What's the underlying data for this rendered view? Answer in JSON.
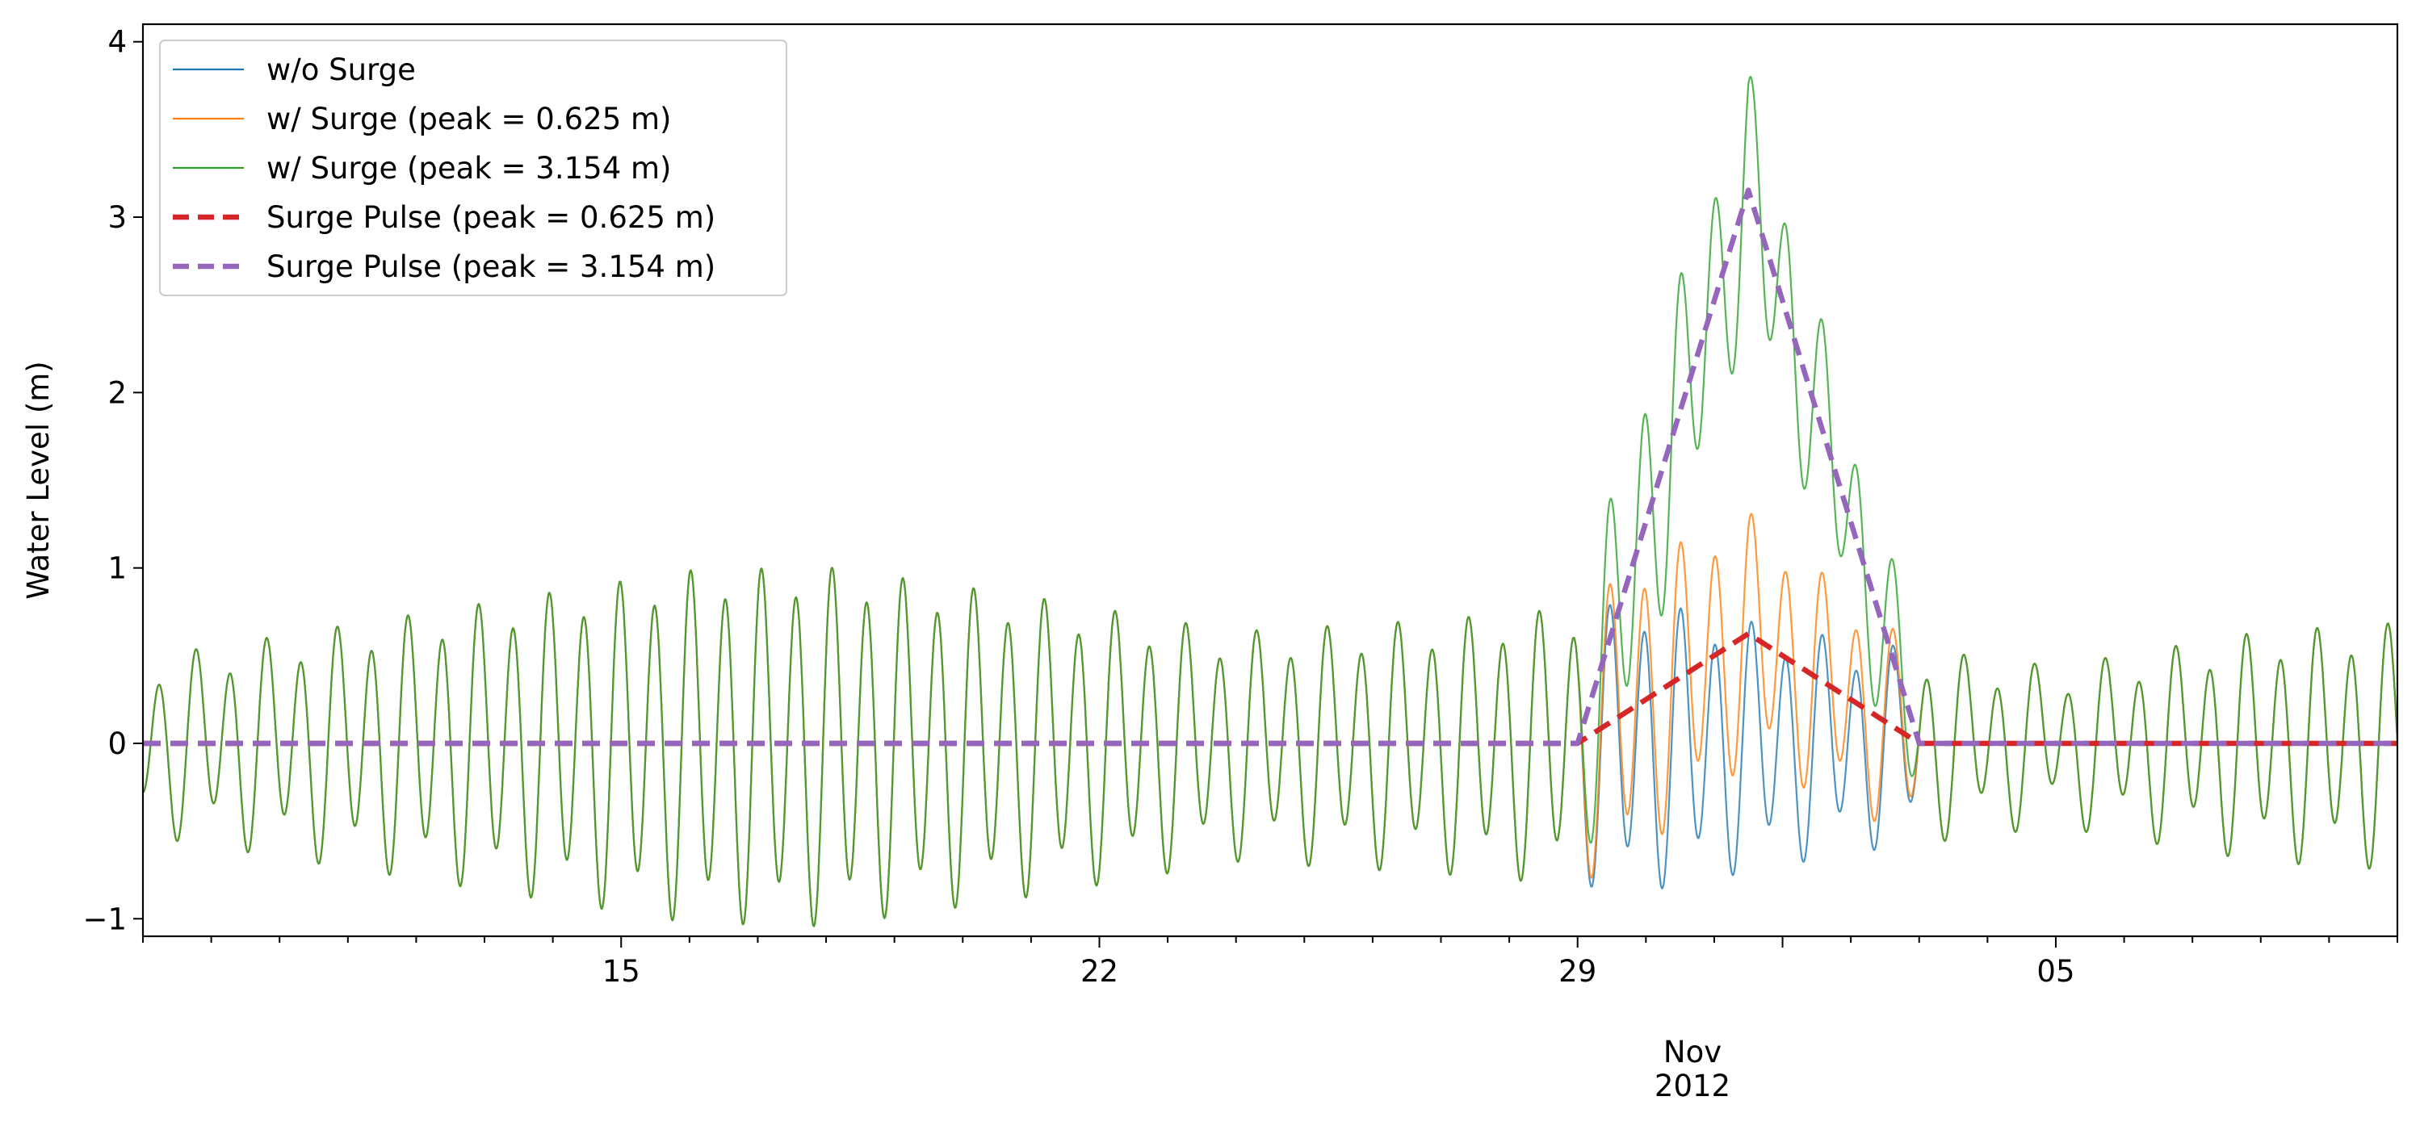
{
  "chart_data": {
    "type": "line",
    "title": "",
    "xlabel": "",
    "ylabel": "Water Level (m)",
    "xlim": [
      "2012-10-08T00:00",
      "2012-11-10T00:00"
    ],
    "ylim": [
      -1.1,
      4.1
    ],
    "grid": false,
    "legend_position": "top-left",
    "x_major_ticks": [
      {
        "date": "2012-10-15",
        "label": "15"
      },
      {
        "date": "2012-10-22",
        "label": "22"
      },
      {
        "date": "2012-10-29",
        "label": "29"
      },
      {
        "date": "2012-11-05",
        "label": "05"
      }
    ],
    "x_secondary_label": {
      "date": "2012-11-01",
      "line1": "Nov",
      "line2": "2012"
    },
    "y_ticks": [
      {
        "value": -1,
        "label": "−1"
      },
      {
        "value": 0,
        "label": "0"
      },
      {
        "value": 1,
        "label": "1"
      },
      {
        "value": 2,
        "label": "2"
      },
      {
        "value": 3,
        "label": "3"
      },
      {
        "value": 4,
        "label": "4"
      }
    ],
    "series": [
      {
        "name": "w/o Surge",
        "color": "#1f77b4",
        "style": "solid",
        "tide": {
          "amplitude_envelope": [
            [
              "2012-10-08",
              0.4
            ],
            [
              "2012-10-12",
              0.65
            ],
            [
              "2012-10-16",
              0.9
            ],
            [
              "2012-10-18",
              0.92
            ],
            [
              "2012-10-21",
              0.75
            ],
            [
              "2012-10-24",
              0.55
            ],
            [
              "2012-10-27",
              0.62
            ],
            [
              "2012-10-30",
              0.72
            ],
            [
              "2012-11-02",
              0.5
            ],
            [
              "2012-11-05",
              0.35
            ],
            [
              "2012-11-08",
              0.55
            ],
            [
              "2012-11-10",
              0.6
            ]
          ],
          "period_hours": 12.42,
          "first_high_water": "2012-10-08T06:00",
          "secondary_amplitude": 0.15
        },
        "added_surge": "none"
      },
      {
        "name": "w/ Surge (peak = 0.625 m)",
        "color": "#ff7f0e",
        "style": "solid",
        "added_surge": "Surge Pulse (peak = 0.625 m)"
      },
      {
        "name": "w/ Surge (peak = 3.154 m)",
        "color": "#2ca02c",
        "style": "solid",
        "added_surge": "Surge Pulse (peak = 3.154 m)"
      },
      {
        "name": "Surge Pulse (peak = 0.625 m)",
        "color": "#d62728",
        "style": "dashed",
        "points": [
          [
            "2012-10-08",
            0
          ],
          [
            "2012-10-29",
            0
          ],
          [
            "2012-10-31T12:00",
            0.625
          ],
          [
            "2012-11-03",
            0
          ],
          [
            "2012-11-10",
            0
          ]
        ]
      },
      {
        "name": "Surge Pulse (peak = 3.154 m)",
        "color": "#9467bd",
        "style": "dashed",
        "points": [
          [
            "2012-10-08",
            0
          ],
          [
            "2012-10-29",
            0
          ],
          [
            "2012-10-31T12:00",
            3.154
          ],
          [
            "2012-11-03",
            0
          ],
          [
            "2012-11-10",
            0
          ]
        ]
      }
    ]
  }
}
